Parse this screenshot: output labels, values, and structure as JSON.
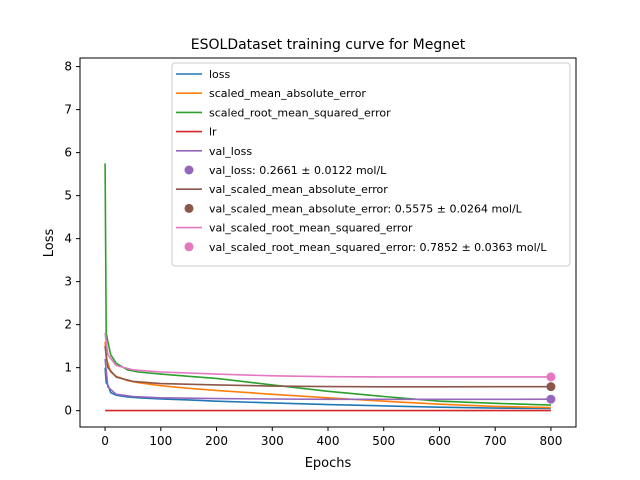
{
  "chart_data": {
    "type": "line",
    "title": "ESOLDataset training curve for Megnet",
    "xlabel": "Epochs",
    "ylabel": "Loss",
    "xlim": [
      -45,
      845
    ],
    "ylim": [
      -0.38,
      8.2
    ],
    "xticks": [
      0,
      100,
      200,
      300,
      400,
      500,
      600,
      700,
      800
    ],
    "yticks": [
      0,
      1,
      2,
      3,
      4,
      5,
      6,
      7,
      8
    ],
    "grid": false,
    "legend_position": "upper-right",
    "series": [
      {
        "name": "loss",
        "color": "#1f77b4",
        "kind": "line",
        "x": [
          0,
          2,
          5,
          10,
          20,
          40,
          60,
          100,
          150,
          200,
          300,
          400,
          500,
          600,
          700,
          800
        ],
        "y": [
          1.0,
          0.65,
          0.6,
          0.42,
          0.36,
          0.32,
          0.3,
          0.27,
          0.25,
          0.22,
          0.18,
          0.14,
          0.11,
          0.08,
          0.06,
          0.05
        ]
      },
      {
        "name": "scaled_mean_absolute_error",
        "color": "#ff7f0e",
        "kind": "line",
        "x": [
          0,
          2,
          5,
          10,
          20,
          40,
          60,
          100,
          150,
          200,
          300,
          400,
          500,
          600,
          700,
          800
        ],
        "y": [
          1.6,
          1.2,
          1.1,
          0.9,
          0.8,
          0.7,
          0.65,
          0.58,
          0.52,
          0.47,
          0.38,
          0.3,
          0.22,
          0.15,
          0.1,
          0.07
        ]
      },
      {
        "name": "scaled_root_mean_squared_error",
        "color": "#2ca02c",
        "kind": "line",
        "x": [
          0,
          2,
          5,
          10,
          20,
          40,
          60,
          100,
          150,
          200,
          300,
          400,
          500,
          600,
          700,
          800
        ],
        "y": [
          5.75,
          1.8,
          1.6,
          1.3,
          1.1,
          0.95,
          0.9,
          0.85,
          0.8,
          0.75,
          0.6,
          0.45,
          0.33,
          0.22,
          0.17,
          0.13
        ]
      },
      {
        "name": "lr",
        "color": "#d62728",
        "kind": "line",
        "x": [
          0,
          800
        ],
        "y": [
          0.001,
          0.001
        ]
      },
      {
        "name": "val_loss",
        "color": "#9467bd",
        "kind": "line",
        "x": [
          0,
          5,
          20,
          50,
          100,
          200,
          300,
          400,
          500,
          600,
          700,
          800
        ],
        "y": [
          1.2,
          0.55,
          0.38,
          0.33,
          0.3,
          0.28,
          0.27,
          0.265,
          0.265,
          0.265,
          0.265,
          0.266
        ]
      },
      {
        "name": "val_loss: 0.2661 ± 0.0122 mol/L",
        "color": "#9467bd",
        "kind": "point",
        "x": [
          800
        ],
        "y": [
          0.2661
        ]
      },
      {
        "name": "val_scaled_mean_absolute_error",
        "color": "#8c564b",
        "kind": "line",
        "x": [
          0,
          5,
          20,
          50,
          100,
          200,
          300,
          400,
          500,
          600,
          700,
          800
        ],
        "y": [
          1.5,
          1.0,
          0.78,
          0.68,
          0.63,
          0.6,
          0.57,
          0.56,
          0.555,
          0.555,
          0.556,
          0.5575
        ]
      },
      {
        "name": "val_scaled_mean_absolute_error: 0.5575 ± 0.0264 mol/L",
        "color": "#8c564b",
        "kind": "point",
        "x": [
          800
        ],
        "y": [
          0.5575
        ]
      },
      {
        "name": "val_scaled_root_mean_squared_error",
        "color": "#e377c2",
        "kind": "line",
        "x": [
          0,
          5,
          20,
          50,
          100,
          200,
          300,
          400,
          500,
          600,
          700,
          800
        ],
        "y": [
          1.8,
          1.3,
          1.05,
          0.95,
          0.9,
          0.85,
          0.81,
          0.79,
          0.785,
          0.785,
          0.785,
          0.7852
        ]
      },
      {
        "name": "val_scaled_root_mean_squared_error: 0.7852 ± 0.0363 mol/L",
        "color": "#e377c2",
        "kind": "point",
        "x": [
          800
        ],
        "y": [
          0.7852
        ]
      }
    ]
  }
}
